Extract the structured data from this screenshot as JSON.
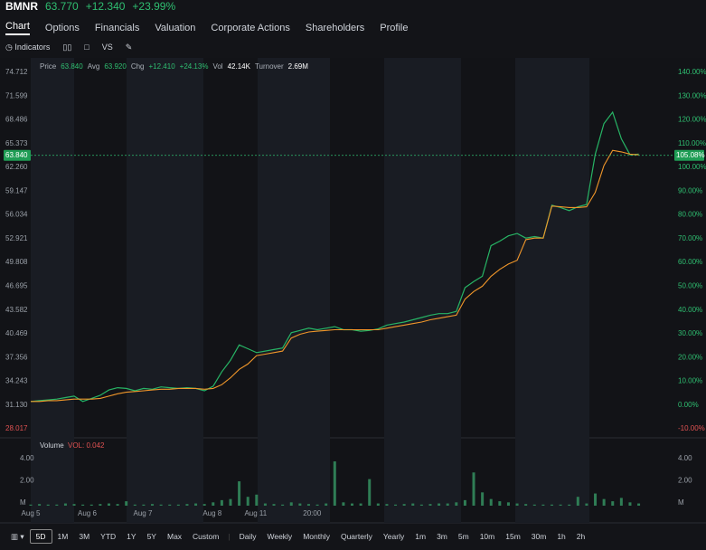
{
  "header": {
    "ticker": "BMNR",
    "price": "63.770",
    "change": "+12.340",
    "change_pct": "+23.99%"
  },
  "tabs": [
    "Chart",
    "Options",
    "Financials",
    "Valuation",
    "Corporate Actions",
    "Shareholders",
    "Profile"
  ],
  "toolbar": {
    "indicators": "Indicators",
    "compare": "VS"
  },
  "info": {
    "price_label": "Price",
    "price": "63.840",
    "avg_label": "Avg",
    "avg": "63.920",
    "chg_label": "Chg",
    "chg": "+12.410",
    "chg_pct": "+24.13%",
    "vol_label": "Vol",
    "vol": "42.14K",
    "turnover_label": "Turnover",
    "turnover": "2.69M"
  },
  "chart_data": [
    {
      "type": "line",
      "ylim": [
        28.017,
        74.712
      ],
      "yticks": [
        74.712,
        71.599,
        68.486,
        65.373,
        {
          "value": 62.26,
          "label": "62.260"
        },
        59.147,
        56.034,
        52.921,
        49.808,
        46.695,
        43.582,
        40.469,
        37.356,
        34.243,
        {
          "value": 31.13,
          "label": "31.130"
        },
        28.017
      ],
      "y2lim": [
        -10,
        140
      ],
      "y2ticks": [
        {
          "value": 140,
          "label": "140.00%"
        },
        {
          "value": 130,
          "label": "130.00%"
        },
        {
          "value": 120,
          "label": "120.00%"
        },
        {
          "value": 110,
          "label": "110.00%"
        },
        {
          "value": 100,
          "label": "100.00%"
        },
        {
          "value": 90,
          "label": "90.00%"
        },
        {
          "value": 80,
          "label": "80.00%"
        },
        {
          "value": 70,
          "label": "70.00%"
        },
        {
          "value": 60,
          "label": "60.00%"
        },
        {
          "value": 50,
          "label": "50.00%"
        },
        {
          "value": 40,
          "label": "40.00%"
        },
        {
          "value": 30,
          "label": "30.00%"
        },
        {
          "value": 20,
          "label": "20.00%"
        },
        {
          "value": 10,
          "label": "10.00%"
        },
        {
          "value": 0,
          "label": "0.00%"
        },
        {
          "value": -10,
          "label": "-10.00%"
        }
      ],
      "xlim": [
        0,
        74
      ],
      "xticks": [
        {
          "value": 0,
          "label": "Aug 5"
        },
        {
          "value": 6.5,
          "label": "Aug 6"
        },
        {
          "value": 12.9,
          "label": "Aug 7"
        },
        {
          "value": 20.9,
          "label": "Aug 8"
        },
        {
          "value": 25.9,
          "label": "Aug 11"
        },
        {
          "value": 32.4,
          "label": "20:00"
        }
      ],
      "last_price": {
        "value": 63.84,
        "label": "63.840"
      },
      "last_pct": {
        "value": 105.08,
        "label": "105.08%"
      },
      "grid": false,
      "series": [
        {
          "color": "#27b465",
          "values": [
            31.6,
            31.7,
            31.8,
            31.9,
            32.1,
            32.3,
            31.6,
            32.0,
            32.4,
            33.1,
            33.4,
            33.3,
            33.0,
            33.3,
            33.2,
            33.5,
            33.4,
            33.3,
            33.4,
            33.3,
            33.0,
            33.6,
            35.5,
            37.0,
            39.0,
            38.5,
            38.0,
            38.2,
            38.4,
            38.6,
            40.6,
            40.9,
            41.2,
            41.0,
            41.2,
            41.4,
            41.0,
            41.0,
            40.8,
            40.9,
            41.1,
            41.6,
            41.8,
            42.0,
            42.3,
            42.6,
            42.9,
            43.1,
            43.1,
            43.4,
            46.5,
            47.3,
            48.0,
            52.0,
            52.6,
            53.3,
            53.6,
            53.0,
            53.2,
            53.0,
            57.3,
            57.0,
            56.6,
            57.1,
            57.4,
            64.0,
            68.0,
            69.5,
            66.0,
            63.9,
            64.0
          ]
        },
        {
          "color": "#f0962a",
          "values": [
            31.6,
            31.6,
            31.7,
            31.7,
            31.8,
            31.9,
            31.9,
            31.9,
            32.0,
            32.3,
            32.6,
            32.8,
            32.9,
            33.0,
            33.1,
            33.2,
            33.2,
            33.3,
            33.3,
            33.3,
            33.2,
            33.3,
            33.8,
            34.7,
            35.8,
            36.5,
            37.6,
            37.8,
            38.0,
            38.2,
            39.9,
            40.4,
            40.7,
            40.8,
            40.9,
            41.0,
            41.0,
            41.0,
            41.0,
            41.0,
            41.0,
            41.2,
            41.4,
            41.6,
            41.8,
            42.0,
            42.3,
            42.5,
            42.7,
            42.9,
            45.0,
            46.0,
            46.7,
            48.0,
            48.9,
            49.6,
            50.1,
            52.8,
            53.0,
            53.0,
            57.2,
            57.1,
            57.0,
            57.0,
            57.1,
            59.0,
            62.5,
            64.5,
            64.3,
            64.0,
            63.9
          ]
        }
      ]
    },
    {
      "type": "bar",
      "title": "Volume",
      "subtitle": "VOL: 0.042",
      "ylim": [
        0,
        5.8
      ],
      "yticks": [
        {
          "value": 4,
          "label": "4.00"
        },
        {
          "value": 2,
          "label": "2.00"
        },
        {
          "value": 0,
          "label": "M"
        }
      ],
      "color": "#2f7d55",
      "values": [
        0.1,
        0.15,
        0.1,
        0.1,
        0.2,
        0.15,
        0.1,
        0.1,
        0.15,
        0.2,
        0.15,
        0.4,
        0.1,
        0.1,
        0.15,
        0.1,
        0.1,
        0.1,
        0.15,
        0.2,
        0.15,
        0.3,
        0.5,
        0.6,
        2.2,
        0.8,
        1.0,
        0.2,
        0.15,
        0.1,
        0.3,
        0.2,
        0.15,
        0.1,
        0.2,
        4.0,
        0.3,
        0.2,
        0.2,
        2.4,
        0.2,
        0.15,
        0.1,
        0.15,
        0.2,
        0.1,
        0.15,
        0.2,
        0.2,
        0.3,
        0.5,
        3.0,
        1.2,
        0.6,
        0.4,
        0.3,
        0.2,
        0.15,
        0.1,
        0.1,
        0.1,
        0.1,
        0.1,
        0.8,
        0.2,
        1.1,
        0.6,
        0.4,
        0.7,
        0.3,
        0.2
      ]
    }
  ],
  "periods": [
    "5D",
    "1M",
    "3M",
    "YTD",
    "1Y",
    "5Y",
    "Max",
    "Custom"
  ],
  "intervals": [
    "Daily",
    "Weekly",
    "Monthly",
    "Quarterly",
    "Yearly",
    "1m",
    "3m",
    "5m",
    "10m",
    "15m",
    "30m",
    "1h",
    "2h"
  ]
}
